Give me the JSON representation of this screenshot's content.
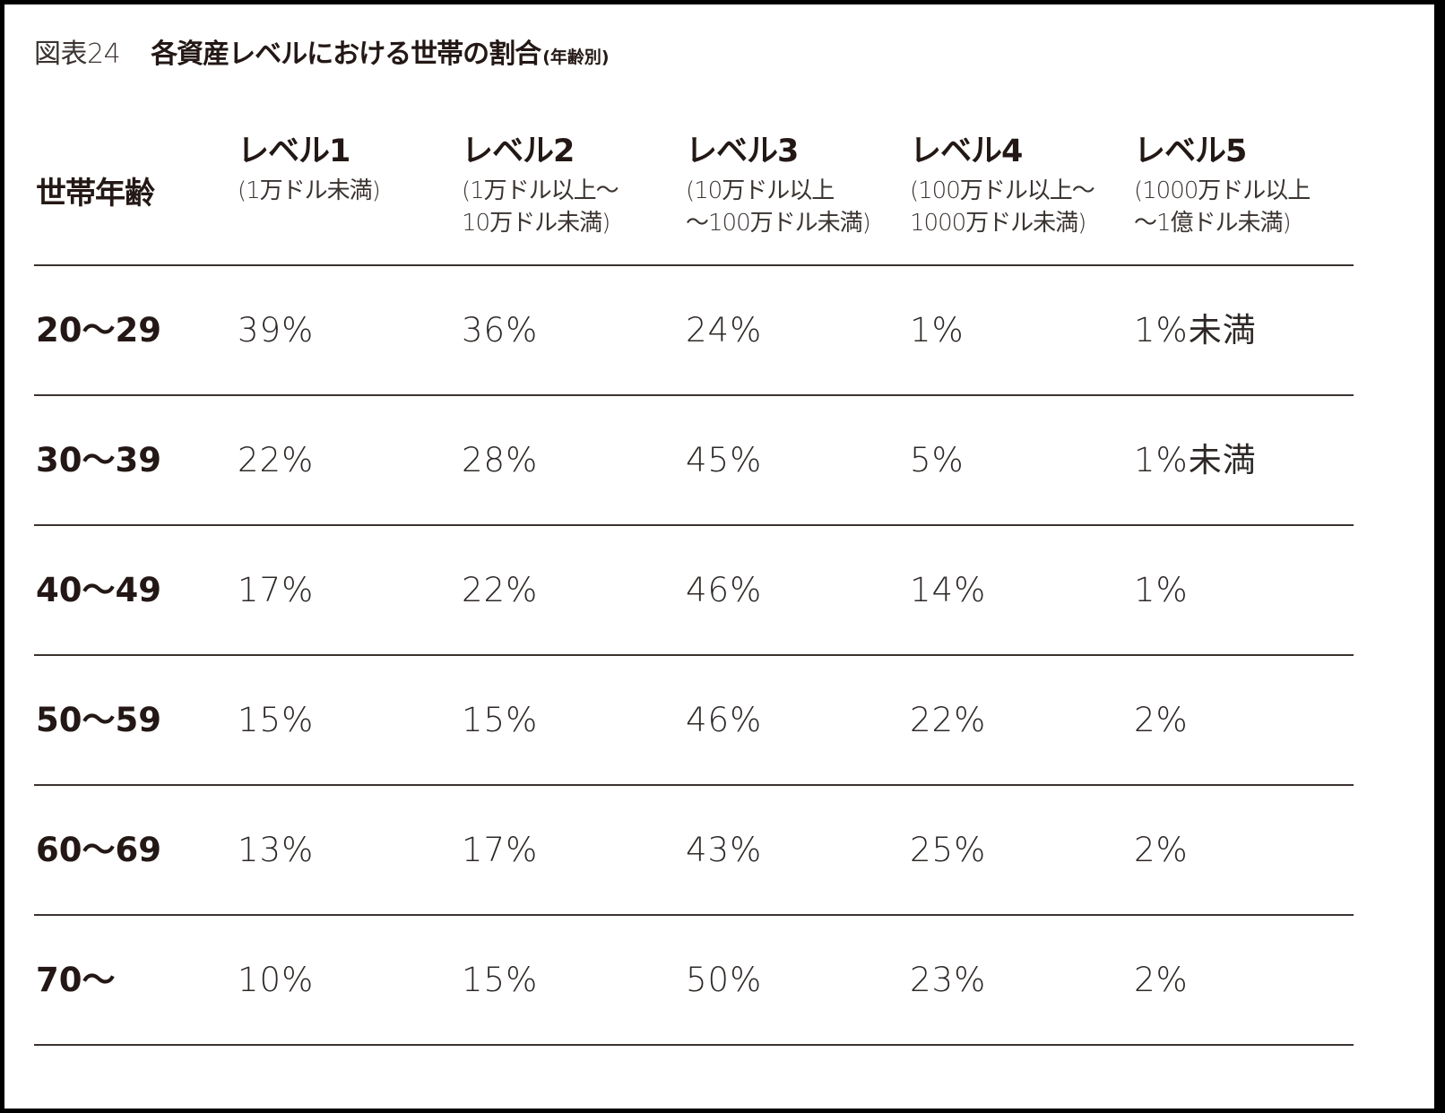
{
  "figure": {
    "number": "図表24",
    "title": "各資産レベルにおける世帯の割合",
    "subtitle": "(年齢別)"
  },
  "table": {
    "row_header_label": "世帯年齢",
    "columns": [
      {
        "level": "レベル1",
        "range": "(1万ドル未満)"
      },
      {
        "level": "レベル2",
        "range": "(1万ドル以上〜\n10万ドル未満)"
      },
      {
        "level": "レベル3",
        "range": "(10万ドル以上\n〜100万ドル未満)"
      },
      {
        "level": "レベル4",
        "range": "(100万ドル以上〜\n1000万ドル未満)"
      },
      {
        "level": "レベル5",
        "range": "(1000万ドル以上\n〜1億ドル未満)"
      }
    ],
    "rows": [
      {
        "age": "20〜29",
        "values": [
          "39%",
          "36%",
          "24%",
          "1%",
          "1%未満"
        ]
      },
      {
        "age": "30〜39",
        "values": [
          "22%",
          "28%",
          "45%",
          "5%",
          "1%未満"
        ]
      },
      {
        "age": "40〜49",
        "values": [
          "17%",
          "22%",
          "46%",
          "14%",
          "1%"
        ]
      },
      {
        "age": "50〜59",
        "values": [
          "15%",
          "15%",
          "46%",
          "22%",
          "2%"
        ]
      },
      {
        "age": "60〜69",
        "values": [
          "13%",
          "17%",
          "43%",
          "25%",
          "2%"
        ]
      },
      {
        "age": "70〜",
        "values": [
          "10%",
          "15%",
          "50%",
          "23%",
          "2%"
        ]
      }
    ]
  },
  "colors": {
    "text": "#231815",
    "rule": "#3a3330",
    "frame": "#000000",
    "background": "#ffffff"
  }
}
